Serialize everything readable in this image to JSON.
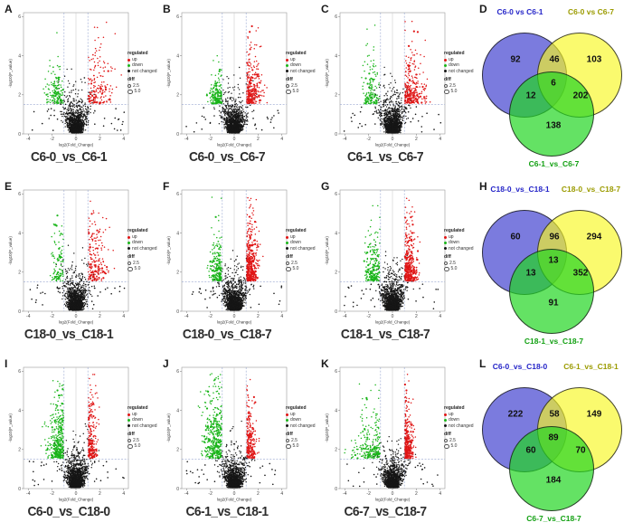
{
  "figure": {
    "description_colors": {
      "up_red": "#e01616",
      "down_green": "#1ab51a",
      "not_changed_black": "#161616",
      "threshold_line_blue": "#96a5cf",
      "venn_blue_fill": "#7b7bde",
      "venn_yellow_fill": "#fafa66",
      "venn_green_fill": "#64e264",
      "venn_blue_label": "#2525c8",
      "venn_olive_label": "#9b9b00",
      "venn_green_label": "#12a012",
      "panel_label_color": "#2d2d2d"
    }
  },
  "volcano_common": {
    "xlabel": "log2(Fold_Change)",
    "ylabel": "-log10(P_value)",
    "x_ticks": [
      "-4",
      "-2",
      "0",
      "2",
      "4"
    ],
    "y_ticks": [
      "0",
      "2",
      "4",
      "6"
    ],
    "legend": {
      "regulated_title": "regulated",
      "items": [
        {
          "label": "up",
          "color": "#e01616"
        },
        {
          "label": "down",
          "color": "#1ab51a"
        },
        {
          "label": "not changed",
          "color": "#161616"
        }
      ],
      "diff_title": "diff",
      "diff_items": [
        "2.5",
        "5.0"
      ]
    }
  },
  "chart_data": [
    {
      "panel": "A",
      "type": "scatter",
      "subtype": "volcano",
      "label": "C6-0_vs_C6-1",
      "xlim": [
        -4.4,
        4.4
      ],
      "ylim": [
        0,
        6.2
      ],
      "thresholds": {
        "x": [
          -1,
          1
        ],
        "p": 1.5
      },
      "seed": 11,
      "clusters": {
        "up": {
          "n": 170,
          "xc": 1.7,
          "xs": 0.75,
          "ym": 1.1
        },
        "down": {
          "n": 150,
          "xc": -1.7,
          "xs": 0.4,
          "ym": 0.75
        },
        "not_changed": {
          "n": 1600
        }
      }
    },
    {
      "panel": "B",
      "type": "scatter",
      "subtype": "volcano",
      "label": "C6-0_vs_C6-7",
      "xlim": [
        -4.4,
        4.4
      ],
      "ylim": [
        0,
        6.2
      ],
      "thresholds": {
        "x": [
          -1,
          1
        ],
        "p": 1.5
      },
      "seed": 22,
      "clusters": {
        "up": {
          "n": 300,
          "xc": 1.25,
          "xs": 0.5,
          "ym": 0.85
        },
        "down": {
          "n": 190,
          "xc": -1.45,
          "xs": 0.3,
          "ym": 0.6
        },
        "not_changed": {
          "n": 1700
        }
      }
    },
    {
      "panel": "C",
      "type": "scatter",
      "subtype": "volcano",
      "label": "C6-1_vs_C6-7",
      "xlim": [
        -4.4,
        4.4
      ],
      "ylim": [
        0,
        6.2
      ],
      "thresholds": {
        "x": [
          -1,
          1
        ],
        "p": 1.5
      },
      "seed": 33,
      "clusters": {
        "up": {
          "n": 290,
          "xc": 1.5,
          "xs": 0.65,
          "ym": 0.85
        },
        "down": {
          "n": 150,
          "xc": -1.8,
          "xs": 0.33,
          "ym": 0.7
        },
        "not_changed": {
          "n": 1700
        }
      }
    },
    {
      "panel": "D",
      "type": "venn",
      "set_labels": [
        "C6-0 vs C6-1",
        "C6-0 vs C6-7",
        "C6-1_vs_C6-7"
      ],
      "counts": {
        "A": "92",
        "AB": "46",
        "B": "103",
        "AC": "12",
        "ABC": "6",
        "BC": "202",
        "C": "138"
      }
    },
    {
      "panel": "E",
      "type": "scatter",
      "subtype": "volcano",
      "label": "C18-0_vs_C18-1",
      "xlim": [
        -4.4,
        4.4
      ],
      "ylim": [
        0,
        6.2
      ],
      "thresholds": {
        "x": [
          -1,
          1
        ],
        "p": 1.5
      },
      "seed": 44,
      "clusters": {
        "up": {
          "n": 200,
          "xc": 1.45,
          "xs": 0.6,
          "ym": 1.25
        },
        "down": {
          "n": 110,
          "xc": -1.5,
          "xs": 0.3,
          "ym": 0.95
        },
        "not_changed": {
          "n": 1800
        }
      }
    },
    {
      "panel": "F",
      "type": "scatter",
      "subtype": "volcano",
      "label": "C18-0_vs_C18-7",
      "xlim": [
        -4.4,
        4.4
      ],
      "ylim": [
        0,
        6.2
      ],
      "thresholds": {
        "x": [
          -1,
          1
        ],
        "p": 1.5
      },
      "seed": 55,
      "clusters": {
        "up": {
          "n": 430,
          "xc": 1.2,
          "xs": 0.42,
          "ym": 1.05
        },
        "down": {
          "n": 210,
          "xc": -1.35,
          "xs": 0.35,
          "ym": 0.8
        },
        "not_changed": {
          "n": 1700
        }
      }
    },
    {
      "panel": "G",
      "type": "scatter",
      "subtype": "volcano",
      "label": "C18-1_vs_C18-7",
      "xlim": [
        -4.4,
        4.4
      ],
      "ylim": [
        0,
        6.2
      ],
      "thresholds": {
        "x": [
          -1,
          1
        ],
        "p": 1.5
      },
      "seed": 66,
      "clusters": {
        "up": {
          "n": 400,
          "xc": 1.25,
          "xs": 0.42,
          "ym": 0.95
        },
        "down": {
          "n": 230,
          "xc": -1.6,
          "xs": 0.32,
          "ym": 0.8
        },
        "not_changed": {
          "n": 1900
        }
      }
    },
    {
      "panel": "H",
      "type": "venn",
      "set_labels": [
        "C18-0_vs_C18-1",
        "C18-0_vs_C18-7",
        "C18-1_vs_C18-7"
      ],
      "counts": {
        "A": "60",
        "AB": "96",
        "B": "294",
        "AC": "13",
        "ABC": "13",
        "BC": "352",
        "C": "91"
      }
    },
    {
      "panel": "I",
      "type": "scatter",
      "subtype": "volcano",
      "label": "C6-0_vs_C18-0",
      "xlim": [
        -4.4,
        4.4
      ],
      "ylim": [
        0,
        6.2
      ],
      "thresholds": {
        "x": [
          -1,
          1
        ],
        "p": 1.5
      },
      "seed": 77,
      "clusters": {
        "up": {
          "n": 230,
          "xc": 0.85,
          "xs": 0.28,
          "ym": 1.15
        },
        "down": {
          "n": 360,
          "xc": -1.35,
          "xs": 0.55,
          "ym": 1.15
        },
        "not_changed": {
          "n": 1800
        }
      }
    },
    {
      "panel": "J",
      "type": "scatter",
      "subtype": "volcano",
      "label": "C6-1_vs_C18-1",
      "xlim": [
        -4.4,
        4.4
      ],
      "ylim": [
        0,
        6.2
      ],
      "thresholds": {
        "x": [
          -1,
          1
        ],
        "p": 1.5
      },
      "seed": 88,
      "clusters": {
        "up": {
          "n": 250,
          "xc": 0.85,
          "xs": 0.3,
          "ym": 1.05
        },
        "down": {
          "n": 400,
          "xc": -1.5,
          "xs": 0.6,
          "ym": 1.4
        },
        "not_changed": {
          "n": 1600
        }
      }
    },
    {
      "panel": "K",
      "type": "scatter",
      "subtype": "volcano",
      "label": "C6-7_vs_C18-7",
      "xlim": [
        -4.4,
        4.4
      ],
      "ylim": [
        0,
        6.2
      ],
      "thresholds": {
        "x": [
          -1,
          1
        ],
        "p": 1.5
      },
      "seed": 99,
      "clusters": {
        "up": {
          "n": 320,
          "xc": 1.05,
          "xs": 0.32,
          "ym": 0.9
        },
        "down": {
          "n": 230,
          "xc": -1.9,
          "xs": 0.75,
          "ym": 0.8
        },
        "not_changed": {
          "n": 1500
        }
      }
    },
    {
      "panel": "L",
      "type": "venn",
      "set_labels": [
        "C6-0_vs_C18-0",
        "C6-1_vs_C18-1",
        "C6-7_vs_C18-7"
      ],
      "counts": {
        "A": "222",
        "AB": "58",
        "B": "149",
        "AC": "60",
        "ABC": "89",
        "BC": "70",
        "C": "184"
      }
    }
  ]
}
